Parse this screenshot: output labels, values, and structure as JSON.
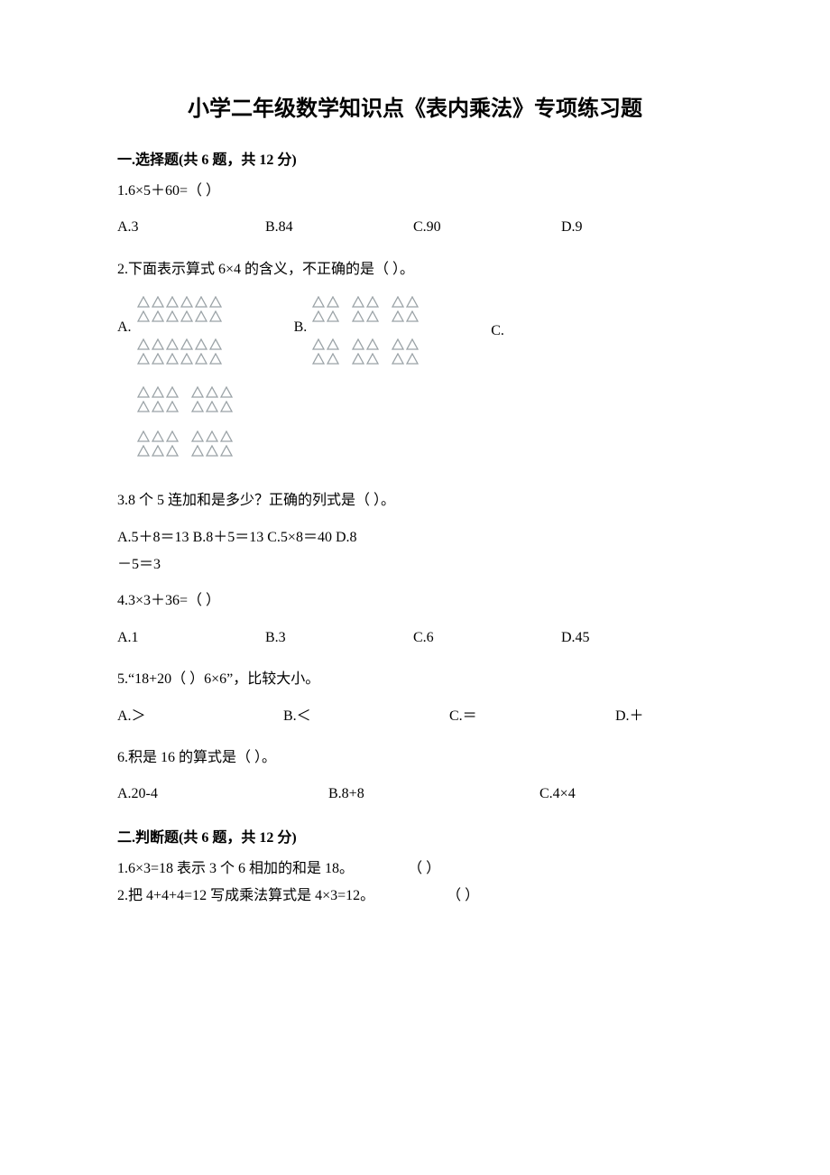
{
  "title": "小学二年级数学知识点《表内乘法》专项练习题",
  "section1": {
    "header": "一.选择题(共 6 题，共 12 分)",
    "q1": {
      "text": "1.6×5＋60=（    ）",
      "opts": {
        "a": "A.3",
        "b": "B.84",
        "c": "C.90",
        "d": "D.9"
      }
    },
    "q2": {
      "text": "2.下面表示算式 6×4 的含义，不正确的是（    ）。",
      "labels": {
        "a": "A.",
        "b": "B.",
        "c": "C."
      }
    },
    "q3": {
      "text": "3.8 个 5 连加和是多少？正确的列式是（     ）。",
      "opts": {
        "a": "A.5＋8＝13",
        "b": "B.8＋5＝13",
        "c": "C.5×8＝40",
        "d": "D.8",
        "d2": "－5＝3"
      }
    },
    "q4": {
      "text": "4.3×3＋36=（    ）",
      "opts": {
        "a": "A.1",
        "b": "B.3",
        "c": "C.6",
        "d": "D.45"
      }
    },
    "q5": {
      "text": "5.“18+20（    ）6×6”，比较大小。",
      "opts": {
        "a": "A.＞",
        "b": "B.＜",
        "c": "C.＝",
        "d": "D.＋"
      }
    },
    "q6": {
      "text": "6.积是 16 的算式是（    ）。",
      "opts": {
        "a": "A.20-4",
        "b": "B.8+8",
        "c": "C.4×4"
      }
    }
  },
  "section2": {
    "header": "二.判断题(共 6 题，共 12 分)",
    "q1": {
      "text": "1.6×3=18 表示 3 个 6 相加的和是 18。",
      "paren": "（    ）"
    },
    "q2": {
      "text": "2.把 4+4+4=12 写成乘法算式是 4×3=12。",
      "paren": "（    ）"
    }
  },
  "style": {
    "triangle_stroke": "#9aa2a6",
    "triangle_fill": "none",
    "background": "#ffffff",
    "text_color": "#000000",
    "font_family": "SimSun, 宋体, serif",
    "title_fontsize": 24,
    "body_fontsize": 16
  },
  "triangles": {
    "optionA": {
      "rows": 4,
      "cols_per_row": 6,
      "groups": 1
    },
    "optionB": {
      "rows": 4,
      "groups": 3,
      "cols_per_group": 2
    },
    "optionC": {
      "rows": 4,
      "groups": 2,
      "cols_per_group": 3
    }
  }
}
